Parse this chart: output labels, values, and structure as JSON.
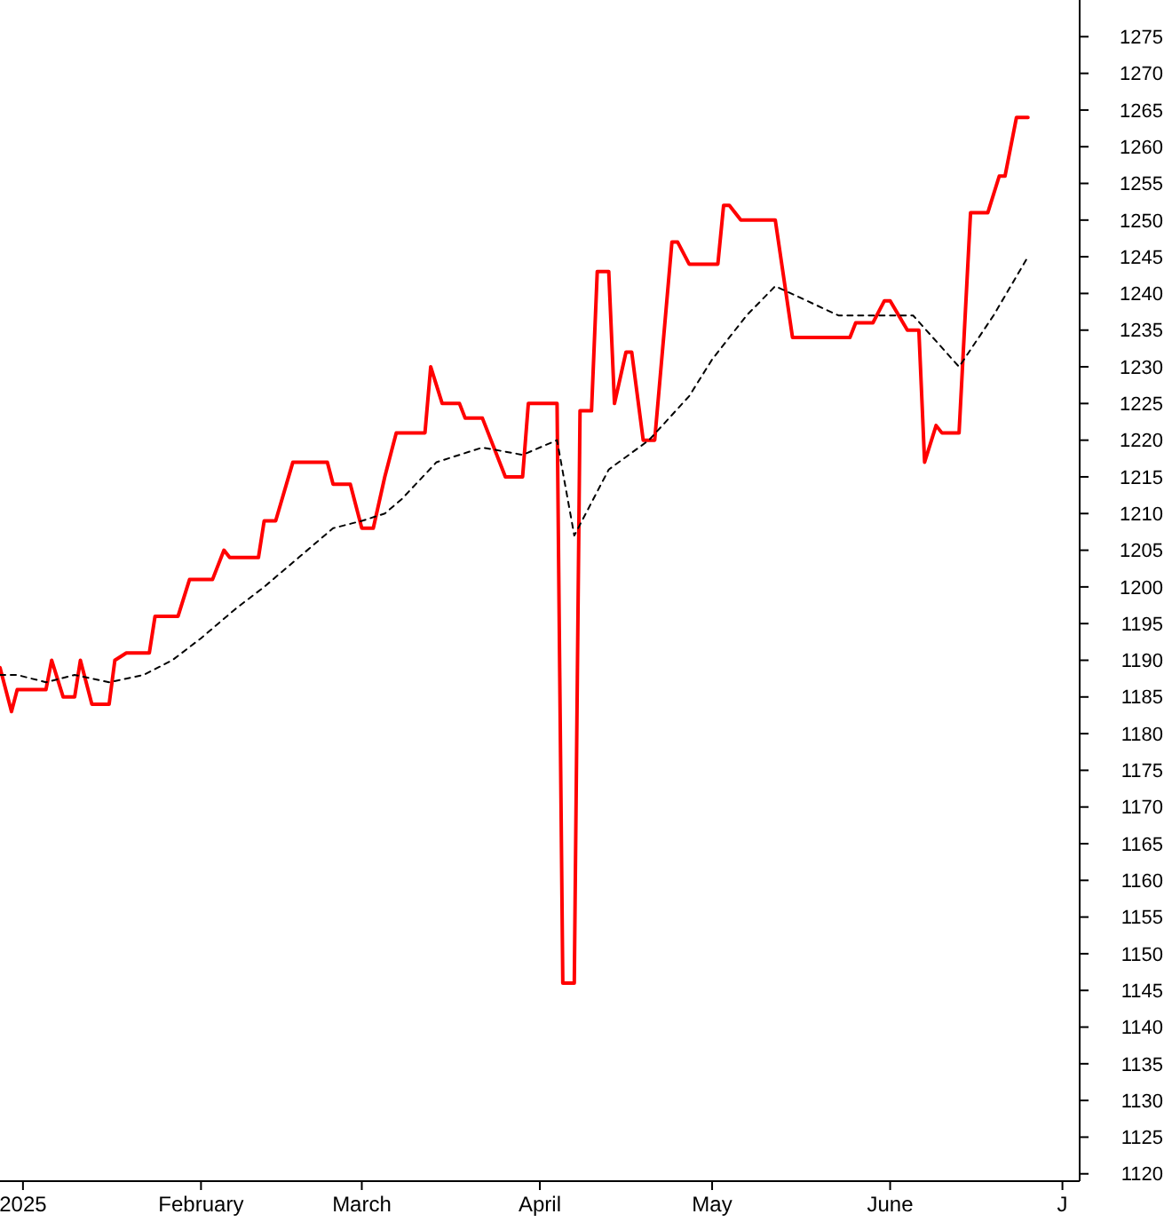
{
  "chart_data": {
    "type": "line",
    "xlim": [
      "2024-12-28",
      "2025-07-04"
    ],
    "xticks": [
      {
        "value": "2025-01-01",
        "label": "2025"
      },
      {
        "value": "2025-02-01",
        "label": "February"
      },
      {
        "value": "2025-03-01",
        "label": "March"
      },
      {
        "value": "2025-04-01",
        "label": "April"
      },
      {
        "value": "2025-05-01",
        "label": "May"
      },
      {
        "value": "2025-06-01",
        "label": "June"
      },
      {
        "value": "2025-07-01",
        "label": "J"
      }
    ],
    "ylim": [
      1119,
      1280
    ],
    "yticks": [
      1120,
      1125,
      1130,
      1135,
      1140,
      1145,
      1150,
      1155,
      1160,
      1165,
      1170,
      1175,
      1180,
      1185,
      1190,
      1195,
      1200,
      1205,
      1210,
      1215,
      1220,
      1225,
      1230,
      1235,
      1240,
      1245,
      1250,
      1255,
      1260,
      1265,
      1270,
      1275
    ],
    "grid": false,
    "marker": "none",
    "series": [
      {
        "color": "#ff0000",
        "line_style": "solid",
        "x": [
          "2024-12-28",
          "2024-12-30",
          "2024-12-31",
          "2025-01-05",
          "2025-01-06",
          "2025-01-08",
          "2025-01-10",
          "2025-01-11",
          "2025-01-13",
          "2025-01-16",
          "2025-01-17",
          "2025-01-19",
          "2025-01-23",
          "2025-01-24",
          "2025-01-28",
          "2025-01-30",
          "2025-02-03",
          "2025-02-05",
          "2025-02-06",
          "2025-02-11",
          "2025-02-12",
          "2025-02-14",
          "2025-02-17",
          "2025-02-23",
          "2025-02-24",
          "2025-02-27",
          "2025-03-01",
          "2025-03-03",
          "2025-03-05",
          "2025-03-07",
          "2025-03-12",
          "2025-03-13",
          "2025-03-15",
          "2025-03-18",
          "2025-03-19",
          "2025-03-22",
          "2025-03-26",
          "2025-03-29",
          "2025-03-30",
          "2025-04-04",
          "2025-04-05",
          "2025-04-07",
          "2025-04-08",
          "2025-04-10",
          "2025-04-11",
          "2025-04-13",
          "2025-04-14",
          "2025-04-16",
          "2025-04-17",
          "2025-04-19",
          "2025-04-21",
          "2025-04-24",
          "2025-04-25",
          "2025-04-27",
          "2025-05-02",
          "2025-05-03",
          "2025-05-04",
          "2025-05-06",
          "2025-05-12",
          "2025-05-15",
          "2025-05-20",
          "2025-05-25",
          "2025-05-26",
          "2025-05-29",
          "2025-05-31",
          "2025-06-01",
          "2025-06-04",
          "2025-06-06",
          "2025-06-07",
          "2025-06-09",
          "2025-06-10",
          "2025-06-13",
          "2025-06-15",
          "2025-06-18",
          "2025-06-20",
          "2025-06-21",
          "2025-06-23",
          "2025-06-25"
        ],
        "values": [
          1189,
          1183,
          1186,
          1186,
          1190,
          1185,
          1185,
          1190,
          1184,
          1184,
          1190,
          1191,
          1191,
          1196,
          1196,
          1201,
          1201,
          1205,
          1204,
          1204,
          1209,
          1209,
          1217,
          1217,
          1214,
          1214,
          1208,
          1208,
          1215,
          1221,
          1221,
          1230,
          1225,
          1225,
          1223,
          1223,
          1215,
          1215,
          1225,
          1225,
          1146,
          1146,
          1224,
          1224,
          1243,
          1243,
          1225,
          1232,
          1232,
          1220,
          1220,
          1247,
          1247,
          1244,
          1244,
          1252,
          1252,
          1250,
          1250,
          1234,
          1234,
          1234,
          1236,
          1236,
          1239,
          1239,
          1235,
          1235,
          1217,
          1222,
          1221,
          1221,
          1251,
          1251,
          1256,
          1256,
          1264,
          1264
        ]
      },
      {
        "color": "#000000",
        "line_style": "dashed",
        "x": [
          "2024-12-28",
          "2024-12-31",
          "2025-01-05",
          "2025-01-10",
          "2025-01-16",
          "2025-01-22",
          "2025-01-27",
          "2025-02-01",
          "2025-02-07",
          "2025-02-12",
          "2025-02-18",
          "2025-02-24",
          "2025-03-01",
          "2025-03-05",
          "2025-03-08",
          "2025-03-14",
          "2025-03-22",
          "2025-03-29",
          "2025-04-04",
          "2025-04-07",
          "2025-04-13",
          "2025-04-20",
          "2025-04-27",
          "2025-05-01",
          "2025-05-07",
          "2025-05-12",
          "2025-05-23",
          "2025-05-29",
          "2025-06-05",
          "2025-06-13",
          "2025-06-19",
          "2025-06-25"
        ],
        "values": [
          1188,
          1188,
          1187,
          1188,
          1187,
          1188,
          1190,
          1193,
          1197,
          1200,
          1204,
          1208,
          1209,
          1210,
          1212,
          1217,
          1219,
          1218,
          1220,
          1207,
          1216,
          1220,
          1226,
          1231,
          1237,
          1241,
          1237,
          1237,
          1237,
          1230,
          1237,
          1245
        ]
      }
    ]
  }
}
